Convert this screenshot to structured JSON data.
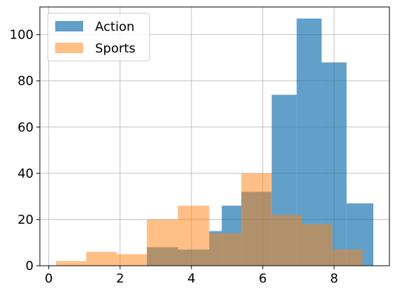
{
  "chart_data": {
    "type": "bar",
    "title": "",
    "xlabel": "",
    "ylabel": "",
    "xlim": [
      -0.25,
      9.55
    ],
    "ylim": [
      0,
      112
    ],
    "xticks": [
      0,
      2,
      4,
      6,
      8
    ],
    "yticks": [
      0,
      20,
      40,
      60,
      80,
      100
    ],
    "grid": true,
    "legend": "upper-left",
    "series": [
      {
        "name": "Action",
        "color": "#1f77b4",
        "opacity": 0.7,
        "bins": [
          {
            "x0": 2.75,
            "x1": 3.62,
            "count": 8
          },
          {
            "x0": 3.62,
            "x1": 4.5,
            "count": 7
          },
          {
            "x0": 4.5,
            "x1": 4.85,
            "count": 15
          },
          {
            "x0": 4.85,
            "x1": 5.4,
            "count": 26
          },
          {
            "x0": 5.4,
            "x1": 6.25,
            "count": 32
          },
          {
            "x0": 6.25,
            "x1": 6.95,
            "count": 74
          },
          {
            "x0": 6.95,
            "x1": 7.65,
            "count": 107
          },
          {
            "x0": 7.65,
            "x1": 8.35,
            "count": 88
          },
          {
            "x0": 8.35,
            "x1": 9.1,
            "count": 27
          }
        ]
      },
      {
        "name": "Sports",
        "color": "#ff7f0e",
        "opacity": 0.5,
        "bins": [
          {
            "x0": 0.2,
            "x1": 1.05,
            "count": 2
          },
          {
            "x0": 1.05,
            "x1": 1.9,
            "count": 6
          },
          {
            "x0": 1.9,
            "x1": 2.75,
            "count": 5
          },
          {
            "x0": 2.75,
            "x1": 3.62,
            "count": 20
          },
          {
            "x0": 3.62,
            "x1": 4.5,
            "count": 26
          },
          {
            "x0": 4.5,
            "x1": 5.4,
            "count": 14
          },
          {
            "x0": 5.4,
            "x1": 6.25,
            "count": 40
          },
          {
            "x0": 6.25,
            "x1": 7.1,
            "count": 22
          },
          {
            "x0": 7.1,
            "x1": 7.95,
            "count": 18
          },
          {
            "x0": 7.95,
            "x1": 8.8,
            "count": 7
          }
        ]
      }
    ]
  }
}
